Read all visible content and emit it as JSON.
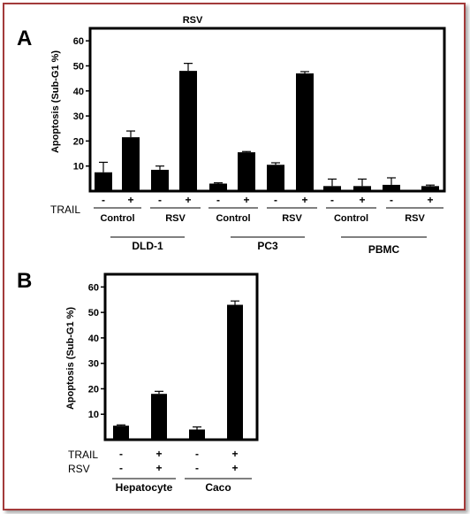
{
  "chart_data": [
    {
      "panel_label": "A",
      "header": "RSV",
      "type": "bar",
      "ylabel": "Apoptosis (Sub-G1 %)",
      "ylim": [
        0,
        65
      ],
      "yticks": [
        10,
        20,
        30,
        40,
        50,
        60
      ],
      "values": [
        7.5,
        21.5,
        8.5,
        48,
        3,
        15.5,
        10.5,
        47,
        2,
        2,
        2.5,
        2
      ],
      "errors": [
        4,
        2.5,
        1.5,
        3,
        0.3,
        0.3,
        0.8,
        0.7,
        2.8,
        2.8,
        2.8,
        0.4
      ],
      "rows": [
        {
          "label": "TRAIL",
          "values": [
            "-",
            "+",
            "-",
            "+",
            "-",
            "+",
            "-",
            "+",
            "-",
            "+",
            "-",
            "+"
          ]
        }
      ],
      "treatment_groups": [
        "Control",
        "RSV",
        "Control",
        "RSV",
        "Control",
        "RSV"
      ],
      "cell_lines": [
        "DLD-1",
        "PC3",
        "PBMC"
      ]
    },
    {
      "panel_label": "B",
      "type": "bar",
      "ylabel": "Apoptosis (Sub-G1 %)",
      "ylim": [
        0,
        65
      ],
      "yticks": [
        10,
        20,
        30,
        40,
        50,
        60
      ],
      "values": [
        5.5,
        18,
        4,
        53
      ],
      "errors": [
        0.3,
        1,
        1,
        1.5
      ],
      "rows": [
        {
          "label": "TRAIL",
          "values": [
            "-",
            "+",
            "-",
            "+"
          ]
        },
        {
          "label": "RSV",
          "values": [
            "-",
            "+",
            "-",
            "+"
          ]
        }
      ],
      "cell_lines": [
        "Hepatocyte",
        "Caco"
      ]
    }
  ]
}
